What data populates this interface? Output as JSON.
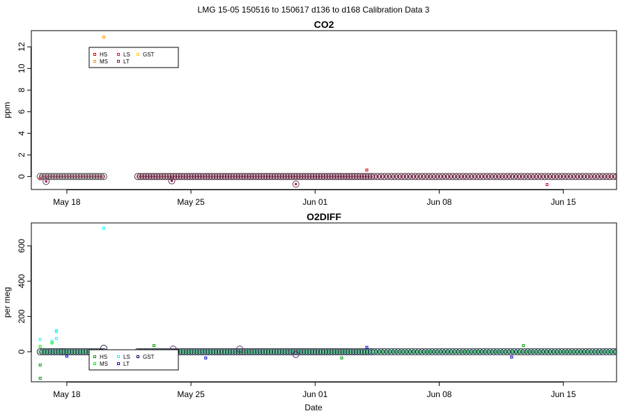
{
  "figure": {
    "title": "LMG   15-05     150516 to 150617     d136 to d168   Calibration Data 3",
    "xlabel": "Date"
  },
  "chart_data": [
    {
      "type": "scatter",
      "title": "CO2",
      "ylabel": "ppm",
      "xlabel": "",
      "xlim": [
        "2015-05-16",
        "2015-06-18"
      ],
      "ylim": [
        -1.2,
        13.5
      ],
      "yticks": [
        0,
        2,
        4,
        6,
        8,
        10,
        12
      ],
      "xticks": [
        {
          "date": "2015-05-18",
          "label": "May 18"
        },
        {
          "date": "2015-05-25",
          "label": "May 25"
        },
        {
          "date": "2015-06-01",
          "label": "Jun 01"
        },
        {
          "date": "2015-06-08",
          "label": "Jun 08"
        },
        {
          "date": "2015-06-15",
          "label": "Jun 15"
        }
      ],
      "legend": {
        "placement": "top-left",
        "entries": [
          {
            "name": "HS",
            "color": "#cc0000"
          },
          {
            "name": "MS",
            "color": "#ff9900"
          },
          {
            "name": "LS",
            "color": "#cc0066"
          },
          {
            "name": "LT",
            "color": "#990066"
          },
          {
            "name": "GST",
            "color": "#ffcc00"
          }
        ]
      },
      "segments": [
        {
          "start": "2015-05-16T12:00",
          "end": "2015-05-20T02:00",
          "count": 24,
          "color": "#444444",
          "y": 0
        },
        {
          "start": "2015-05-22T00:00",
          "end": "2015-06-04T04:00",
          "count": 86,
          "color": "#442233",
          "y": 0
        },
        {
          "start": "2015-06-04T08:00",
          "end": "2015-06-18T00:00",
          "count": 72,
          "color": "#442233",
          "y": 0
        }
      ],
      "outliers": [
        {
          "x": "2015-05-20T02:00",
          "y": 12.9,
          "color": "#ff9900",
          "series": "MS"
        },
        {
          "x": "2015-06-03T22:00",
          "y": 0.6,
          "color": "#cc0000",
          "series": "HS"
        },
        {
          "x": "2015-06-14T02:00",
          "y": -0.75,
          "color": "#cc0066",
          "series": "LS"
        },
        {
          "x": "2015-05-16T12:00",
          "y": -0.2,
          "color": "#cc0000",
          "series": "HS"
        }
      ],
      "rings": [
        {
          "x": "2015-05-16T20:00",
          "y": -0.45,
          "color": "#663344"
        },
        {
          "x": "2015-05-23T22:00",
          "y": -0.4,
          "color": "#663344"
        },
        {
          "x": "2015-05-30T22:00",
          "y": -0.7,
          "color": "#663344"
        }
      ],
      "dots": [
        {
          "x": "2015-05-30T22:00",
          "y": -0.7,
          "color": "#990066"
        },
        {
          "x": "2015-05-16T20:00",
          "y": -0.45,
          "color": "#990066"
        },
        {
          "x": "2015-05-23T22:00",
          "y": -0.4,
          "color": "#990066"
        }
      ]
    },
    {
      "type": "scatter",
      "title": "O2DIFF",
      "ylabel": "per meg",
      "xlabel": "Date",
      "xlim": [
        "2015-05-16",
        "2015-06-18"
      ],
      "ylim": [
        -170,
        730
      ],
      "yticks": [
        0,
        200,
        400,
        600
      ],
      "xticks": [
        {
          "date": "2015-05-18",
          "label": "May 18"
        },
        {
          "date": "2015-05-25",
          "label": "May 25"
        },
        {
          "date": "2015-06-01",
          "label": "Jun 01"
        },
        {
          "date": "2015-06-08",
          "label": "Jun 08"
        },
        {
          "date": "2015-06-15",
          "label": "Jun 15"
        }
      ],
      "legend": {
        "placement": "bottom-left",
        "entries": [
          {
            "name": "HS",
            "color": "#009900"
          },
          {
            "name": "MS",
            "color": "#00ee00"
          },
          {
            "name": "LS",
            "color": "#00ffff"
          },
          {
            "name": "LT",
            "color": "#0000cc"
          },
          {
            "name": "GST",
            "color": "#000066"
          }
        ]
      },
      "segments": [
        {
          "start": "2015-05-16T12:00",
          "end": "2015-05-20T02:00",
          "count": 24,
          "color": "#1e2a40",
          "y": 0
        },
        {
          "start": "2015-05-22T00:00",
          "end": "2015-06-04T04:00",
          "count": 86,
          "color": "#1e2a40",
          "y": 0
        },
        {
          "start": "2015-06-04T08:00",
          "end": "2015-06-18T00:00",
          "count": 72,
          "color": "#1e2a40",
          "y": 0
        }
      ],
      "outliers": [
        {
          "x": "2015-05-20T02:00",
          "y": 700,
          "color": "#00ffff",
          "series": "LS"
        },
        {
          "x": "2015-05-16T12:00",
          "y": -150,
          "color": "#009900",
          "series": "HS"
        },
        {
          "x": "2015-05-16T12:00",
          "y": -75,
          "color": "#009900",
          "series": "HS"
        },
        {
          "x": "2015-05-16T12:00",
          "y": 70,
          "color": "#00ffff",
          "series": "LS"
        },
        {
          "x": "2015-05-17T04:00",
          "y": 60,
          "color": "#00ffff",
          "series": "LS"
        },
        {
          "x": "2015-05-17T10:00",
          "y": 120,
          "color": "#00ffff",
          "series": "LS"
        },
        {
          "x": "2015-05-17T10:00",
          "y": 115,
          "color": "#00ffff",
          "series": "LS"
        },
        {
          "x": "2015-05-17T10:00",
          "y": 75,
          "color": "#00ffff",
          "series": "LS"
        },
        {
          "x": "2015-05-16T12:00",
          "y": 30,
          "color": "#00ee00",
          "series": "MS"
        },
        {
          "x": "2015-05-17T04:00",
          "y": 50,
          "color": "#00ee00",
          "series": "MS"
        },
        {
          "x": "2015-05-22T22:00",
          "y": 35,
          "color": "#009900",
          "series": "HS"
        },
        {
          "x": "2015-06-12T18:00",
          "y": 35,
          "color": "#009900",
          "series": "HS"
        },
        {
          "x": "2015-05-23T12:00",
          "y": -35,
          "color": "#009900",
          "series": "HS"
        },
        {
          "x": "2015-06-02T12:00",
          "y": -35,
          "color": "#009900",
          "series": "HS"
        },
        {
          "x": "2015-05-25T20:00",
          "y": -35,
          "color": "#0000cc",
          "series": "LT"
        },
        {
          "x": "2015-06-03T22:00",
          "y": 25,
          "color": "#0000cc",
          "series": "LT"
        },
        {
          "x": "2015-06-12T02:00",
          "y": -30,
          "color": "#0000cc",
          "series": "LT"
        },
        {
          "x": "2015-05-18T00:00",
          "y": -25,
          "color": "#0000cc",
          "series": "LT"
        }
      ],
      "rings": [
        {
          "x": "2015-05-20T02:00",
          "y": 20,
          "color": "#1e2a40"
        },
        {
          "x": "2015-05-30T22:00",
          "y": -15,
          "color": "#553366"
        },
        {
          "x": "2015-05-17T18:00",
          "y": 0,
          "color": "#1e2a40"
        },
        {
          "x": "2015-05-24T00:00",
          "y": 15,
          "color": "#553366"
        },
        {
          "x": "2015-05-27T18:00",
          "y": 15,
          "color": "#553366"
        }
      ],
      "dots": []
    }
  ]
}
